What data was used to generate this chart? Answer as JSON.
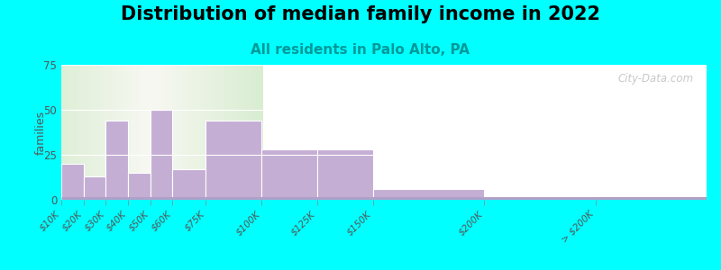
{
  "title": "Distribution of median family income in 2022",
  "subtitle": "All residents in Palo Alto, PA",
  "ylabel": "families",
  "background_outer": "#00FFFF",
  "bar_color": "#C4AED4",
  "bar_edge_color": "#FFFFFF",
  "tick_labels": [
    "$10K",
    "$20K",
    "$30K",
    "$40K",
    "$50K",
    "$60K",
    "$75K",
    "$100K",
    "$125K",
    "$150K",
    "$200K",
    "> $200K"
  ],
  "tick_positions": [
    10,
    20,
    30,
    40,
    50,
    60,
    75,
    100,
    125,
    150,
    200,
    250
  ],
  "bin_edges": [
    10,
    20,
    30,
    40,
    50,
    60,
    75,
    100,
    125,
    150,
    200,
    250,
    300
  ],
  "values": [
    20,
    13,
    44,
    15,
    50,
    17,
    44,
    28,
    28,
    6,
    0,
    2
  ],
  "ylim": [
    0,
    75
  ],
  "yticks": [
    0,
    25,
    50,
    75
  ],
  "watermark": "City-Data.com",
  "title_fontsize": 15,
  "subtitle_fontsize": 11,
  "subtitle_color": "#009999",
  "grid_color": "#FFFFFF",
  "bg_green": "#D8EDD0",
  "bg_white": "#F5F5F0"
}
